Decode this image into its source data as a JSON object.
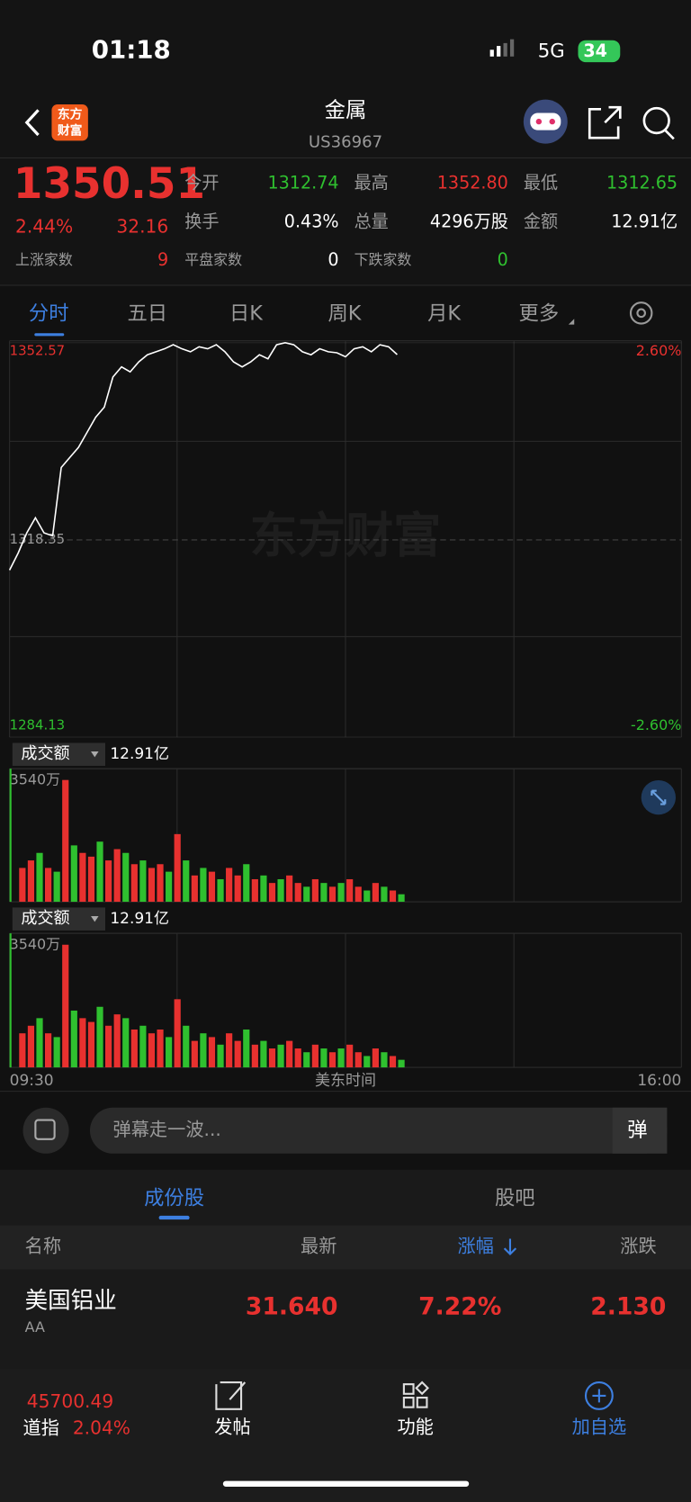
{
  "status_bar": {
    "time": "01:18",
    "network": "5G",
    "battery": "34"
  },
  "header": {
    "logo": [
      "东方",
      "财富"
    ],
    "title": "金属",
    "code": "US36967"
  },
  "quote": {
    "price": "1350.51",
    "change_pct": "2.44%",
    "change": "32.16",
    "stats": [
      {
        "label": "今开",
        "value": "1312.74"
      },
      {
        "label": "最高",
        "value": "1352.80"
      },
      {
        "label": "最低",
        "value": "1312.65"
      },
      {
        "label": "换手",
        "value": "0.43%"
      },
      {
        "label": "总量",
        "value": "4296万股"
      },
      {
        "label": "金额",
        "value": "12.91亿"
      }
    ],
    "breadth": [
      {
        "label": "上涨家数",
        "value": "9"
      },
      {
        "label": "平盘家数",
        "value": "0"
      },
      {
        "label": "下跌家数",
        "value": "0"
      }
    ]
  },
  "tabs": [
    "分时",
    "五日",
    "日K",
    "周K",
    "月K",
    "更多"
  ],
  "chart_data": [
    {
      "type": "line",
      "watermark": "东方财富",
      "x_label": "美东时间",
      "color": "#ffffff",
      "xlim": [
        0,
        390
      ],
      "xticks": [
        {
          "value": 0,
          "label": "09:30"
        },
        {
          "value": 390,
          "label": "16:00"
        }
      ],
      "ylim": [
        1284.13,
        1352.57
      ],
      "yticks": [
        1284.13,
        1318.35,
        1352.57
      ],
      "y2lim": [
        -2.6,
        2.6
      ],
      "y2ticks": [
        {
          "value": -2.6,
          "label": "-2.60%"
        },
        {
          "value": 2.6,
          "label": "2.60%"
        }
      ],
      "x": [
        0,
        5,
        10,
        15,
        20,
        25,
        30,
        35,
        40,
        45,
        50,
        55,
        60,
        65,
        70,
        75,
        80,
        85,
        90,
        95,
        100,
        105,
        110,
        115,
        120,
        125,
        130,
        135,
        140,
        145,
        150,
        155,
        160,
        165,
        170,
        175,
        180,
        185,
        190,
        195,
        200,
        205,
        210,
        215,
        220,
        225
      ],
      "values": [
        1313.11,
        1316.08,
        1319.57,
        1322.19,
        1319.57,
        1319.05,
        1330.92,
        1332.67,
        1334.41,
        1337.03,
        1339.65,
        1341.4,
        1346.63,
        1348.38,
        1347.51,
        1349.25,
        1350.48,
        1351.0,
        1351.52,
        1352.22,
        1351.52,
        1351.0,
        1351.87,
        1351.52,
        1352.22,
        1351.0,
        1349.25,
        1348.38,
        1349.25,
        1350.48,
        1349.78,
        1352.22,
        1352.57,
        1352.22,
        1351.0,
        1350.48,
        1351.52,
        1351.0,
        1350.83,
        1350.13,
        1351.52,
        1351.87,
        1351.0,
        1352.22,
        1351.87,
        1350.51
      ]
    },
    {
      "type": "bar",
      "indicator": "成交额",
      "total": "12.91亿",
      "xlim": [
        0,
        390
      ],
      "ylim": [
        0,
        3540
      ],
      "yticks": [
        {
          "value": 3540,
          "label": "3540万"
        }
      ],
      "x": [
        0,
        5,
        10,
        15,
        20,
        25,
        30,
        35,
        40,
        45,
        50,
        55,
        60,
        65,
        70,
        75,
        80,
        85,
        90,
        95,
        100,
        105,
        110,
        115,
        120,
        125,
        130,
        135,
        140,
        145,
        150,
        155,
        160,
        165,
        170,
        175,
        180,
        185,
        190,
        195,
        200,
        205,
        210,
        215,
        220,
        225
      ],
      "values": [
        3540,
        900,
        1100,
        1300,
        900,
        800,
        3240,
        1500,
        1300,
        1200,
        1600,
        1100,
        1400,
        1300,
        1000,
        1100,
        900,
        1000,
        800,
        1800,
        1100,
        700,
        900,
        800,
        600,
        900,
        700,
        1000,
        600,
        700,
        500,
        600,
        700,
        500,
        400,
        600,
        500,
        400,
        500,
        600,
        400,
        300,
        500,
        400,
        300,
        200
      ],
      "colors": [
        "#2fc02f",
        "#e8312f",
        "#e8312f",
        "#2fc02f",
        "#e8312f",
        "#2fc02f",
        "#e8312f",
        "#2fc02f",
        "#e8312f",
        "#e8312f",
        "#2fc02f",
        "#e8312f",
        "#e8312f",
        "#2fc02f",
        "#e8312f",
        "#2fc02f",
        "#e8312f",
        "#e8312f",
        "#2fc02f",
        "#e8312f",
        "#2fc02f",
        "#e8312f",
        "#2fc02f",
        "#e8312f",
        "#2fc02f",
        "#e8312f",
        "#e8312f",
        "#2fc02f",
        "#e8312f",
        "#2fc02f",
        "#e8312f",
        "#2fc02f",
        "#e8312f",
        "#e8312f",
        "#2fc02f",
        "#e8312f",
        "#2fc02f",
        "#e8312f",
        "#2fc02f",
        "#e8312f",
        "#e8312f",
        "#2fc02f",
        "#e8312f",
        "#2fc02f",
        "#e8312f",
        "#2fc02f"
      ]
    }
  ],
  "danmaku": {
    "placeholder": "弹幕走一波...",
    "button": "弹"
  },
  "section_tabs": [
    "成份股",
    "股吧"
  ],
  "table": {
    "columns": [
      "名称",
      "最新",
      "涨幅",
      "涨跌"
    ],
    "rows": [
      {
        "name": "美国铝业",
        "code": "AA",
        "cells": [
          "31.640",
          "7.22%",
          "2.130"
        ]
      }
    ]
  },
  "bottom_bar": {
    "index_value": "45700.49",
    "index_name": "道指",
    "index_pct": "2.04%",
    "items": [
      "发帖",
      "功能",
      "加自选"
    ]
  }
}
